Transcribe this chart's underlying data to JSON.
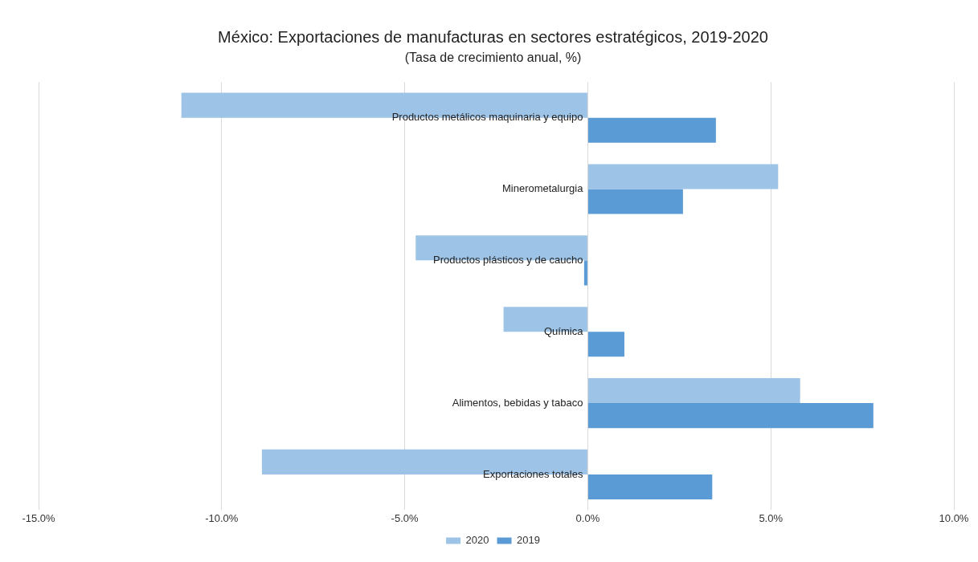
{
  "chart_data": {
    "type": "bar",
    "orientation": "horizontal",
    "title": "México: Exportaciones de manufacturas en sectores estratégicos, 2019-2020",
    "subtitle": "(Tasa de crecimiento anual, %)",
    "categories": [
      "Productos metálicos maquinaria y equipo",
      "Minerometalurgia",
      "Productos plásticos y de caucho",
      "Química",
      "Alimentos, bebidas y tabaco",
      "Exportaciones totales"
    ],
    "series": [
      {
        "name": "2020",
        "color": "#9dc3e6",
        "values": [
          -11.1,
          5.2,
          -4.7,
          -2.3,
          5.8,
          -8.9
        ]
      },
      {
        "name": "2019",
        "color": "#5b9bd5",
        "values": [
          3.5,
          2.6,
          -0.1,
          1.0,
          7.8,
          3.4
        ]
      }
    ],
    "xlim": [
      -15,
      10
    ],
    "xticks": [
      {
        "value": -15,
        "label": "-15.0%"
      },
      {
        "value": -10,
        "label": "-10.0%"
      },
      {
        "value": -5,
        "label": "-5.0%"
      },
      {
        "value": 0,
        "label": "0.0%"
      },
      {
        "value": 5,
        "label": "5.0%"
      },
      {
        "value": 10,
        "label": "10.0%"
      }
    ],
    "grid": "x",
    "legend": "bottom"
  }
}
